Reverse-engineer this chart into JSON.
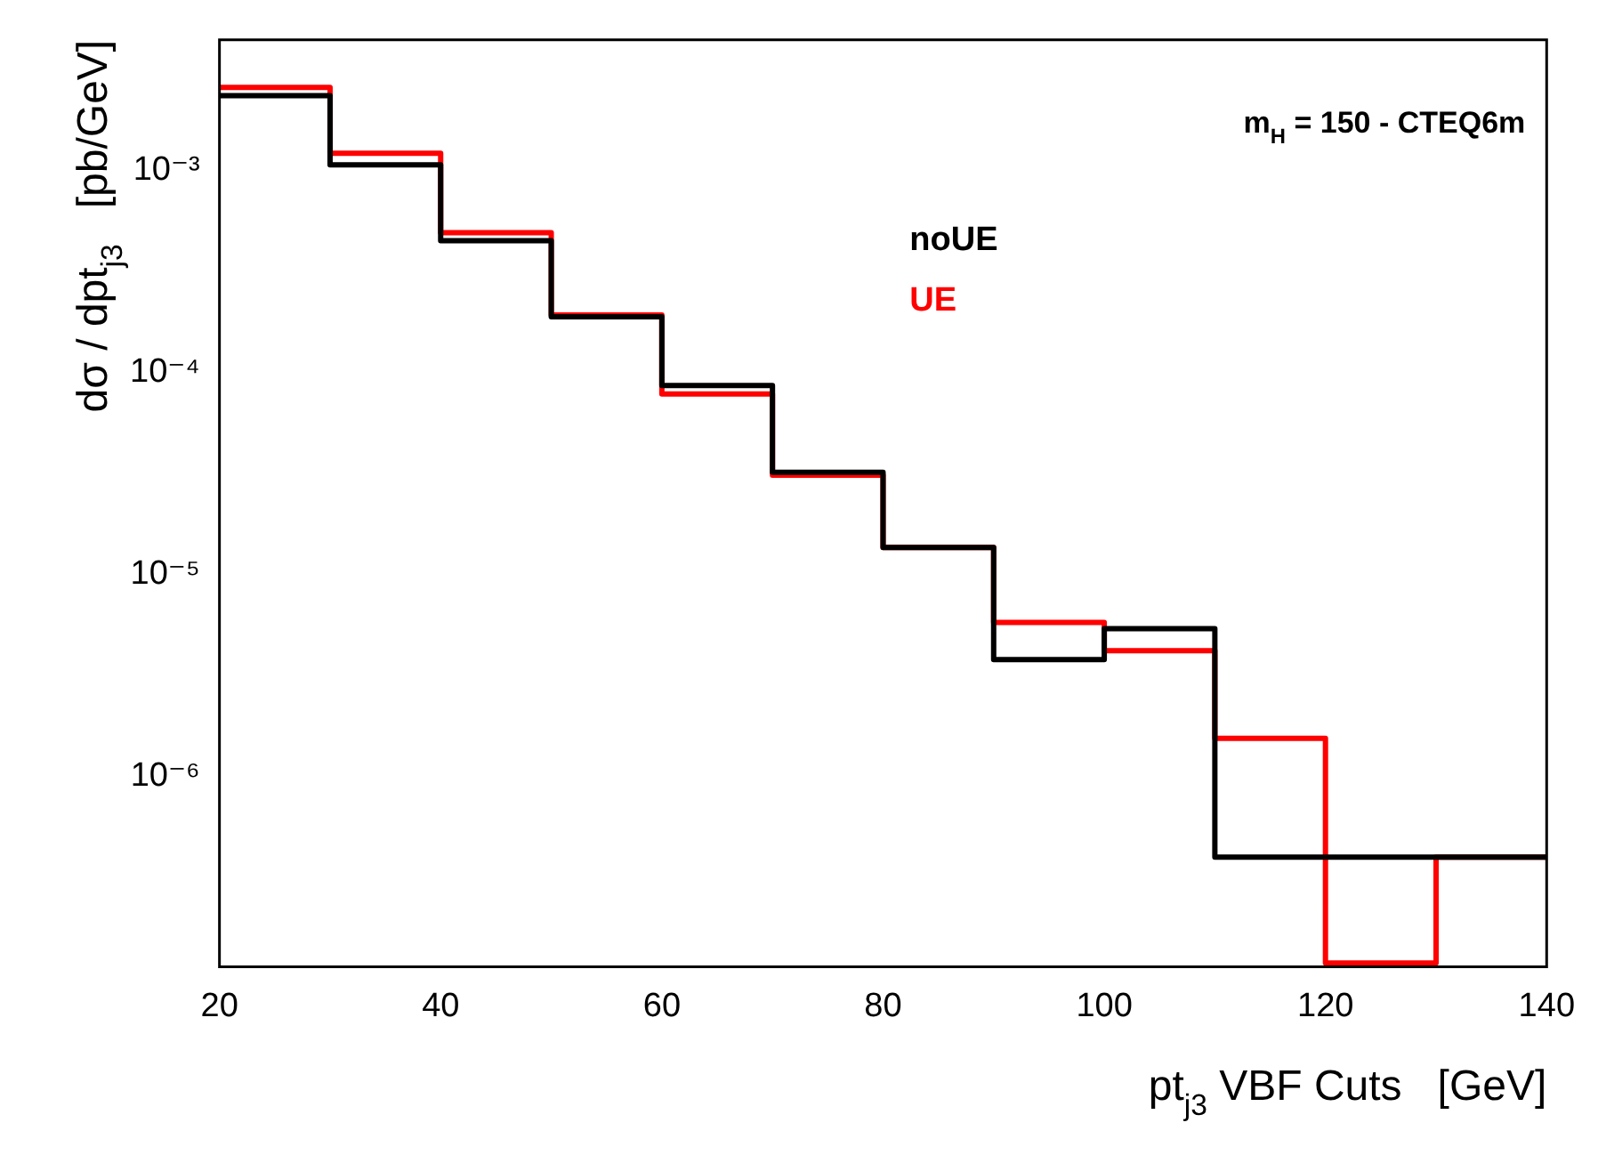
{
  "chart_data": {
    "type": "histogram",
    "title": "m$_{H}$ = 150 - CTEQ6m",
    "xlabel": "pt$_{j3}$ VBF Cuts   [GeV]",
    "ylabel": "dσ / dpt$_{j3}$   [pb/GeV]",
    "bins": [
      20,
      30,
      40,
      50,
      60,
      70,
      80,
      90,
      100,
      110,
      120,
      130,
      140
    ],
    "series": [
      {
        "name": "noUE",
        "color": "#000000",
        "values": [
          0.00233,
          0.00106,
          0.000447,
          0.000188,
          8.6e-05,
          3.2e-05,
          1.36e-05,
          3.8e-06,
          5.4e-06,
          4e-07,
          4e-07,
          4e-07
        ]
      },
      {
        "name": "UE",
        "color": "#ff0000",
        "values": [
          0.00256,
          0.00121,
          0.00049,
          0.000192,
          7.8e-05,
          3.1e-05,
          1.36e-05,
          5.8e-06,
          4.2e-06,
          1.55e-06,
          1.2e-07,
          4e-07
        ]
      }
    ],
    "xlim": [
      20,
      140
    ],
    "xticks": [
      20,
      40,
      60,
      80,
      100,
      120,
      140
    ],
    "ylim": [
      1.15e-07,
      0.0044
    ],
    "yticks": [
      {
        "value": 1e-06,
        "label": "10⁻⁶"
      },
      {
        "value": 1e-05,
        "label": "10⁻⁵"
      },
      {
        "value": 0.0001,
        "label": "10⁻⁴"
      },
      {
        "value": 0.001,
        "label": "10⁻³"
      }
    ],
    "log": "y",
    "grid": false,
    "legend": "top right",
    "line_style": "solid",
    "marker": "none"
  }
}
